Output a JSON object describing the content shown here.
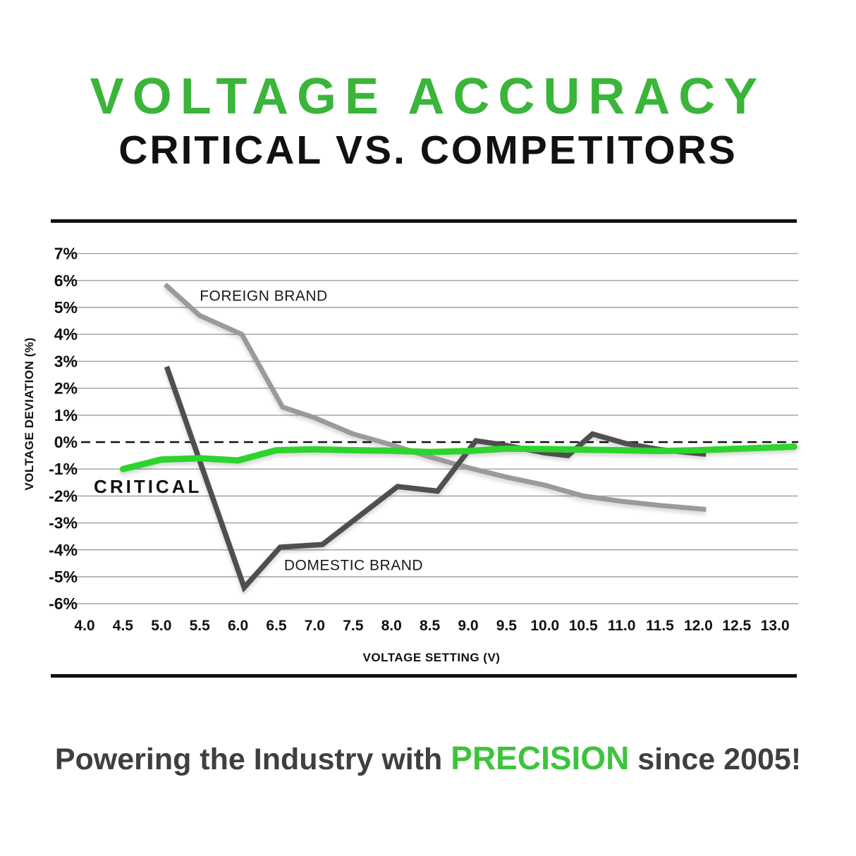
{
  "header": {
    "title": "VOLTAGE ACCURACY",
    "subtitle": "CRITICAL VS. COMPETITORS"
  },
  "tagline": {
    "prefix": "Powering the Industry with ",
    "highlight": "PRECISION",
    "suffix": " since 2005!"
  },
  "colors": {
    "title_green": "#3ab53a",
    "highlight_green": "#3cc43c",
    "critical_line_green": "#2dd32d",
    "domestic_line_gray": "#4f4f4f",
    "foreign_line_gray": "#9a9a9a",
    "grid_gray": "#9f9f9f",
    "text_dark": "#111111",
    "tagline_gray": "#3f3f3f"
  },
  "chart_data": {
    "type": "line",
    "title": "",
    "xlabel": "VOLTAGE SETTING (V)",
    "ylabel": "VOLTAGE DEVIATION (%)",
    "x_ticks": [
      "4.0",
      "4.5",
      "5.0",
      "5.5",
      "6.0",
      "6.5",
      "7.0",
      "7.5",
      "8.0",
      "8.5",
      "9.0",
      "9.5",
      "10.0",
      "10.5",
      "11.0",
      "11.5",
      "12.0",
      "12.5",
      "13.0"
    ],
    "y_ticks": [
      "7%",
      "6%",
      "5%",
      "4%",
      "3%",
      "2%",
      "1%",
      "0%",
      "-1%",
      "-2%",
      "-3%",
      "-4%",
      "-5%",
      "-6%"
    ],
    "x_range": [
      4.0,
      13.0
    ],
    "y_range": [
      -6,
      7
    ],
    "grid": true,
    "zero_line": "dashed",
    "legend_position": "inline-labels",
    "series": [
      {
        "name": "FOREIGN BRAND",
        "color": "#9a9a9a",
        "stroke_width": 7,
        "label": {
          "text": "FOREIGN BRAND",
          "v": 5.5,
          "pct": 5.25,
          "anchor": "start",
          "style": "plain"
        },
        "points": [
          [
            5.05,
            5.85
          ],
          [
            5.5,
            4.7
          ],
          [
            6.05,
            4.0
          ],
          [
            6.58,
            1.3
          ],
          [
            7.0,
            0.9
          ],
          [
            7.5,
            0.3
          ],
          [
            8.0,
            -0.1
          ],
          [
            8.5,
            -0.55
          ],
          [
            9.0,
            -0.95
          ],
          [
            9.5,
            -1.3
          ],
          [
            10.0,
            -1.6
          ],
          [
            10.5,
            -2.0
          ],
          [
            11.0,
            -2.2
          ],
          [
            11.5,
            -2.35
          ],
          [
            12.1,
            -2.5
          ]
        ]
      },
      {
        "name": "DOMESTIC BRAND",
        "color": "#4f4f4f",
        "stroke_width": 7.5,
        "label": {
          "text": "DOMESTIC BRAND",
          "v": 6.6,
          "pct": -4.75,
          "anchor": "start",
          "style": "plain"
        },
        "points": [
          [
            5.07,
            2.8
          ],
          [
            6.08,
            -5.4
          ],
          [
            6.55,
            -3.9
          ],
          [
            7.1,
            -3.8
          ],
          [
            8.08,
            -1.65
          ],
          [
            8.6,
            -1.82
          ],
          [
            9.1,
            0.05
          ],
          [
            9.45,
            -0.1
          ],
          [
            10.0,
            -0.4
          ],
          [
            10.3,
            -0.5
          ],
          [
            10.62,
            0.3
          ],
          [
            11.05,
            -0.05
          ],
          [
            11.5,
            -0.28
          ],
          [
            12.1,
            -0.45
          ]
        ]
      },
      {
        "name": "CRITICAL",
        "color": "#2dd32d",
        "stroke_width": 9,
        "label": {
          "text": "CRITICAL",
          "v": 4.12,
          "pct": -1.88,
          "anchor": "start",
          "style": "techno"
        },
        "points": [
          [
            4.5,
            -1.0
          ],
          [
            5.0,
            -0.65
          ],
          [
            5.5,
            -0.6
          ],
          [
            6.0,
            -0.68
          ],
          [
            6.5,
            -0.3
          ],
          [
            7.0,
            -0.27
          ],
          [
            7.5,
            -0.3
          ],
          [
            8.0,
            -0.32
          ],
          [
            8.5,
            -0.37
          ],
          [
            9.0,
            -0.33
          ],
          [
            9.5,
            -0.24
          ],
          [
            10.0,
            -0.26
          ],
          [
            10.5,
            -0.28
          ],
          [
            11.0,
            -0.3
          ],
          [
            11.5,
            -0.33
          ],
          [
            12.0,
            -0.3
          ],
          [
            12.5,
            -0.25
          ],
          [
            13.25,
            -0.17
          ]
        ]
      }
    ]
  }
}
